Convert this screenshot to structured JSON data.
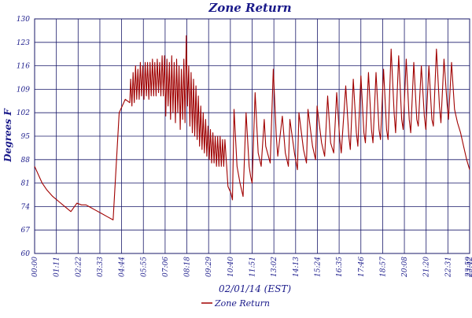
{
  "chart_data": {
    "type": "line",
    "title": "Zone Return",
    "xlabel": "02/01/14 (EST)",
    "ylabel": "Degrees F",
    "ylim": [
      60,
      130
    ],
    "xlim": [
      0,
      1440
    ],
    "yticks": [
      "60",
      "67",
      "74",
      "81",
      "88",
      "95",
      "102",
      "109",
      "116",
      "123",
      "130"
    ],
    "xticks": [
      "00:00",
      "01:11",
      "02:22",
      "03:33",
      "04:44",
      "05:55",
      "07:06",
      "08:18",
      "09:29",
      "10:40",
      "11:51",
      "13:02",
      "14:13",
      "15:24",
      "16:35",
      "17:46",
      "18:57",
      "20:08",
      "21:20",
      "22:31",
      "23:42",
      "23:59"
    ],
    "grid": true,
    "legend_position": "bottom",
    "series": [
      {
        "name": "Zone Return",
        "color": "#a00000",
        "x": [
          0,
          10,
          25,
          40,
          60,
          80,
          100,
          120,
          140,
          155,
          170,
          180,
          200,
          220,
          240,
          260,
          280,
          300,
          315,
          318,
          322,
          326,
          330,
          334,
          338,
          342,
          346,
          350,
          354,
          358,
          362,
          366,
          370,
          374,
          378,
          382,
          386,
          390,
          394,
          398,
          402,
          406,
          410,
          414,
          418,
          422,
          426,
          430,
          434,
          438,
          442,
          446,
          450,
          454,
          458,
          462,
          466,
          470,
          474,
          478,
          482,
          486,
          490,
          494,
          498,
          502,
          506,
          510,
          514,
          518,
          522,
          526,
          530,
          534,
          538,
          542,
          546,
          550,
          554,
          558,
          562,
          566,
          570,
          574,
          578,
          582,
          586,
          590,
          594,
          598,
          602,
          606,
          610,
          614,
          618,
          622,
          626,
          630,
          640,
          650,
          655,
          660,
          670,
          680,
          690,
          700,
          710,
          715,
          720,
          730,
          740,
          750,
          760,
          765,
          780,
          790,
          800,
          805,
          820,
          830,
          840,
          845,
          860,
          870,
          875,
          890,
          900,
          905,
          920,
          930,
          935,
          950,
          960,
          970,
          980,
          990,
          1000,
          1010,
          1015,
          1030,
          1040,
          1045,
          1055,
          1065,
          1070,
          1080,
          1090,
          1095,
          1105,
          1115,
          1120,
          1130,
          1140,
          1145,
          1155,
          1165,
          1170,
          1180,
          1190,
          1195,
          1205,
          1215,
          1220,
          1230,
          1240,
          1245,
          1255,
          1265,
          1270,
          1280,
          1290,
          1295,
          1305,
          1315,
          1320,
          1330,
          1340,
          1345,
          1355,
          1365,
          1370,
          1380,
          1390,
          1400,
          1410,
          1420,
          1430,
          1440
        ],
        "y": [
          86,
          84,
          81,
          79,
          77,
          75.5,
          74,
          72.5,
          75,
          74.5,
          74.5,
          74,
          73,
          72,
          71,
          70,
          102,
          106,
          105,
          112,
          104,
          114,
          105,
          116,
          106,
          115,
          106,
          117,
          107,
          116,
          106,
          117,
          107,
          117,
          106,
          117,
          107,
          118,
          107,
          117,
          107,
          118,
          108,
          117,
          107,
          119,
          107,
          119,
          101,
          118,
          104,
          117,
          100,
          119,
          102,
          117,
          99,
          118,
          102,
          116,
          97,
          115,
          100,
          118,
          99,
          125,
          104,
          116,
          98,
          114,
          96,
          112,
          95,
          110,
          94,
          107,
          92,
          104,
          91,
          102,
          90,
          100,
          89,
          98,
          88,
          97,
          87,
          96,
          87,
          95,
          86,
          95,
          86,
          95,
          86,
          94,
          86,
          94,
          80,
          78,
          76,
          103,
          86,
          81,
          77,
          102,
          86,
          83,
          81,
          108,
          90,
          86,
          100,
          92,
          87,
          115,
          95,
          89,
          101,
          90,
          86,
          100,
          90,
          85,
          102,
          91,
          87,
          103,
          92,
          88,
          104,
          93,
          89,
          107,
          93,
          90,
          108,
          94,
          90,
          110,
          95,
          91,
          112,
          96,
          92,
          113,
          96,
          93,
          114,
          97,
          93,
          114,
          97,
          94,
          115,
          97,
          94,
          121,
          102,
          96,
          119,
          100,
          97,
          118,
          100,
          96,
          117,
          100,
          98,
          116,
          101,
          97,
          116,
          100,
          98,
          121,
          104,
          99,
          118,
          105,
          100,
          117,
          103,
          99,
          96,
          92,
          88,
          85
        ]
      }
    ]
  }
}
